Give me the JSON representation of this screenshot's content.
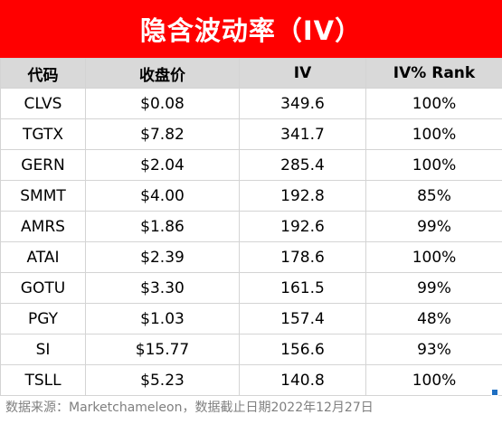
{
  "title": "隐含波动率（IV）",
  "colors": {
    "title_bg": "#ff0000",
    "title_text": "#ffffff",
    "header_bg": "#d9d9d9",
    "footer_text": "#7f7f7f",
    "selection_handle": "#1f6fc2"
  },
  "table": {
    "headers": [
      "代码",
      "收盘价",
      "IV",
      "IV% Rank"
    ],
    "rows": [
      [
        "CLVS",
        "$0.08",
        "349.6",
        "100%"
      ],
      [
        "TGTX",
        "$7.82",
        "341.7",
        "100%"
      ],
      [
        "GERN",
        "$2.04",
        "285.4",
        "100%"
      ],
      [
        "SMMT",
        "$4.00",
        "192.8",
        "85%"
      ],
      [
        "AMRS",
        "$1.86",
        "192.6",
        "99%"
      ],
      [
        "ATAI",
        "$2.39",
        "178.6",
        "100%"
      ],
      [
        "GOTU",
        "$3.30",
        "161.5",
        "99%"
      ],
      [
        "PGY",
        "$1.03",
        "157.4",
        "48%"
      ],
      [
        "SI",
        "$15.77",
        "156.6",
        "93%"
      ],
      [
        "TSLL",
        "$5.23",
        "140.8",
        "100%"
      ]
    ]
  },
  "footer": "数据来源：Marketchameleon，数据截止日期2022年12月27日"
}
